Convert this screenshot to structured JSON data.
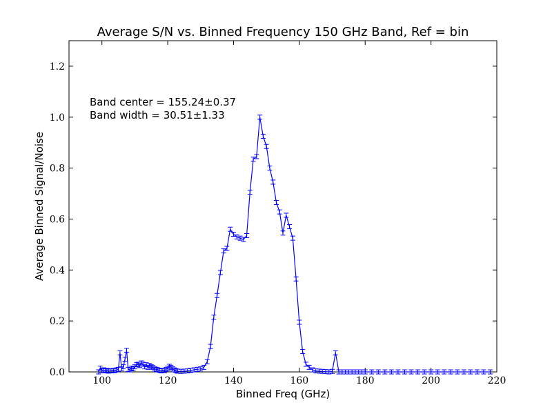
{
  "chart_data": {
    "type": "line",
    "title": "Average S/N vs. Binned Frequency 150 GHz Band, Ref = bin",
    "xlabel": "Binned Freq (GHz)",
    "ylabel": "Average Binned Signal/Noise",
    "xlim": [
      90,
      220
    ],
    "ylim": [
      0,
      1.3
    ],
    "xticks": [
      100,
      120,
      140,
      160,
      180,
      200,
      220
    ],
    "yticks": [
      0.0,
      0.2,
      0.4,
      0.6,
      0.8,
      1.0,
      1.2
    ],
    "xtick_labels": [
      "100",
      "120",
      "140",
      "160",
      "180",
      "200",
      "220"
    ],
    "ytick_labels": [
      "0.0",
      "0.2",
      "0.4",
      "0.6",
      "0.8",
      "1.0",
      "1.2"
    ],
    "grid": false,
    "line_color": "#0000ff",
    "annotations": [
      "Band center = 155.24±0.37",
      "Band width = 30.51±1.33"
    ],
    "series": [
      {
        "x": [
          99.0,
          99.5,
          100.0,
          100.5,
          101.0,
          101.5,
          102.0,
          102.5,
          103.0,
          103.5,
          104.0,
          104.5,
          105.0,
          105.5,
          106.0,
          106.5,
          107.0,
          107.5,
          108.0,
          108.5,
          109.0,
          109.5,
          110.0,
          110.5,
          111.0,
          111.5,
          112.0,
          112.5,
          113.0,
          113.5,
          114.0,
          114.5,
          115.0,
          115.5,
          116.0,
          116.5,
          117.0,
          117.5,
          118.0,
          118.5,
          119.0,
          119.5,
          120.0,
          120.5,
          121.0,
          121.5,
          122.0,
          122.5,
          123.0,
          124.0,
          125.0,
          126.0,
          127.0,
          128.0,
          129.0,
          130.0,
          131.0,
          132.0,
          133.0,
          134.0,
          135.0,
          136.0,
          137.0,
          138.0,
          139.0,
          140.0,
          141.0,
          142.0,
          143.0,
          144.0,
          145.0,
          146.0,
          147.0,
          148.0,
          149.0,
          150.0,
          151.0,
          152.0,
          153.0,
          154.0,
          155.0,
          156.0,
          157.0,
          158.0,
          159.0,
          160.0,
          161.0,
          162.0,
          163.0,
          164.0,
          165.0,
          166.0,
          167.0,
          168.0,
          169.0,
          170.0,
          171.0,
          172.0,
          173.0,
          174.0,
          175.0,
          176.0,
          177.0,
          178.0,
          179.0,
          180.0,
          182.0,
          184.0,
          186.0,
          188.0,
          190.0,
          192.0,
          194.0,
          196.0,
          198.0,
          200.0,
          202.0,
          204.0,
          206.0,
          208.0,
          210.0,
          212.0,
          214.0,
          216.0,
          218.0
        ],
        "y": [
          0.0,
          0.015,
          0.005,
          0.008,
          0.004,
          0.006,
          0.003,
          0.005,
          0.004,
          0.006,
          0.005,
          0.008,
          0.01,
          0.075,
          0.012,
          0.02,
          0.05,
          0.085,
          0.01,
          0.008,
          0.015,
          0.012,
          0.02,
          0.028,
          0.03,
          0.025,
          0.035,
          0.03,
          0.02,
          0.028,
          0.018,
          0.025,
          0.02,
          0.018,
          0.012,
          0.01,
          0.008,
          0.006,
          0.004,
          0.006,
          0.005,
          0.01,
          0.015,
          0.022,
          0.018,
          0.012,
          0.008,
          0.005,
          0.003,
          0.002,
          0.003,
          0.004,
          0.006,
          0.008,
          0.01,
          0.012,
          0.018,
          0.04,
          0.1,
          0.215,
          0.3,
          0.39,
          0.475,
          0.485,
          0.56,
          0.54,
          0.53,
          0.525,
          0.52,
          0.535,
          0.705,
          0.835,
          0.845,
          1.0,
          0.925,
          0.885,
          0.8,
          0.745,
          0.665,
          0.628,
          0.545,
          0.615,
          0.57,
          0.525,
          0.365,
          0.195,
          0.08,
          0.03,
          0.018,
          0.008,
          0.004,
          0.003,
          0.002,
          0.001,
          0.0,
          0.002,
          0.075,
          0.0,
          0.0,
          0.0,
          0.0,
          0.0,
          0.0,
          0.0,
          0.0,
          0.0,
          0.0,
          0.0,
          0.0,
          0.0,
          0.0,
          0.0,
          0.0,
          0.0,
          0.0,
          0.0,
          0.0,
          0.0,
          0.0,
          0.0,
          0.0,
          0.0,
          0.0,
          0.0,
          0.0
        ]
      }
    ]
  }
}
